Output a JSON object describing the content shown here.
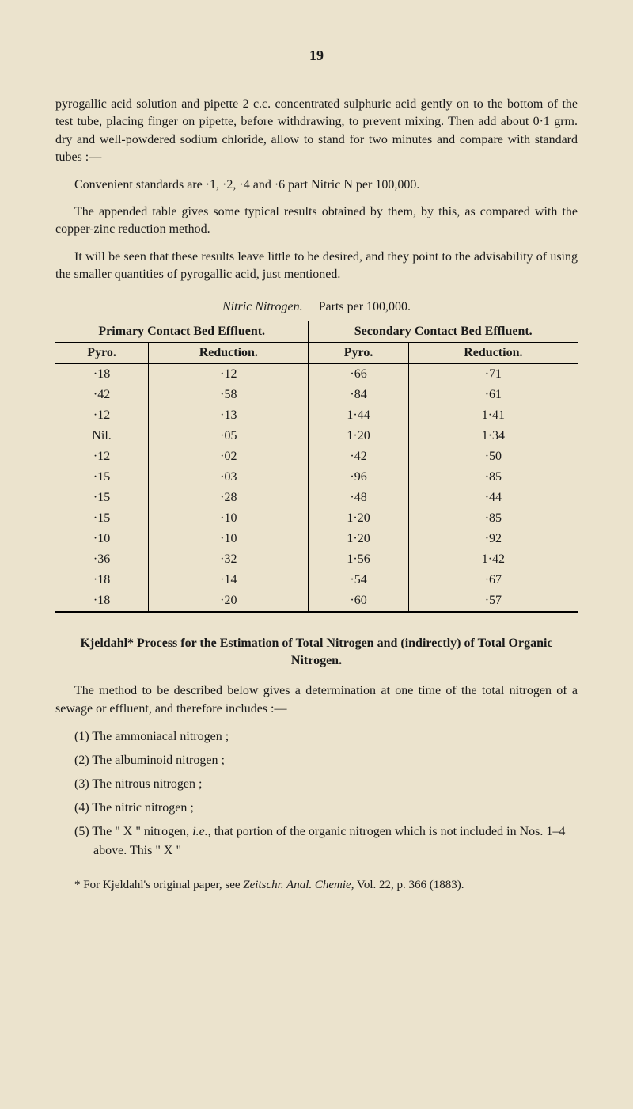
{
  "page_number": "19",
  "para1": "pyrogallic acid solution and pipette 2 c.c. concentrated sulphuric acid gently on to the bottom of the test tube, placing finger on pipette, before withdrawing, to prevent mixing. Then add about 0·1 grm. dry and well-powdered sodium chloride, allow to stand for two minutes and compare with standard tubes :—",
  "para2": "Convenient standards are ·1, ·2, ·4 and ·6 part Nitric N per 100,000.",
  "para3": "The appended table gives some typical results obtained by them, by this, as compared with the copper-zinc reduction method.",
  "para4": "It will be seen that these results leave little to be desired, and they point to the advisability of using the smaller quantities of pyrogallic acid, just mentioned.",
  "table": {
    "title_italic": "Nitric Nitrogen.",
    "title_roman": "Parts per 100,000.",
    "top_headers": [
      "Primary Contact Bed Effluent.",
      "Secondary Contact Bed Effluent."
    ],
    "sub_headers": [
      "Pyro.",
      "Reduction.",
      "Pyro.",
      "Reduction."
    ],
    "rows": [
      [
        "·18",
        "·12",
        "·66",
        "·71"
      ],
      [
        "·42",
        "·58",
        "·84",
        "·61"
      ],
      [
        "·12",
        "·13",
        "1·44",
        "1·41"
      ],
      [
        "Nil.",
        "·05",
        "1·20",
        "1·34"
      ],
      [
        "·12",
        "·02",
        "·42",
        "·50"
      ],
      [
        "·15",
        "·03",
        "·96",
        "·85"
      ],
      [
        "·15",
        "·28",
        "·48",
        "·44"
      ],
      [
        "·15",
        "·10",
        "1·20",
        "·85"
      ],
      [
        "·10",
        "·10",
        "1·20",
        "·92"
      ],
      [
        "·36",
        "·32",
        "1·56",
        "1·42"
      ],
      [
        "·18",
        "·14",
        "·54",
        "·67"
      ],
      [
        "·18",
        "·20",
        "·60",
        "·57"
      ]
    ]
  },
  "section_title": "Kjeldahl* Process for the Estimation of Total Nitrogen and (indirectly) of Total Organic Nitrogen.",
  "para5": "The method to be described below gives a determination at one time of the total nitrogen of a sewage or effluent, and therefore includes :—",
  "list": [
    "(1) The ammoniacal nitrogen ;",
    "(2) The albuminoid nitrogen ;",
    "(3) The nitrous nitrogen ;",
    "(4) The nitric nitrogen ;"
  ],
  "list5_a": "(5) The \" X \" nitrogen, ",
  "list5_ital": "i.e.",
  "list5_b": ", that portion of the organic nitrogen which is not included in Nos. 1–4 above. This \" X \"",
  "footnote_a": "* For Kjeldahl's original paper, see ",
  "footnote_ital": "Zeitschr. Anal. Chemie",
  "footnote_b": ", Vol. 22, p. 366 (1883)."
}
